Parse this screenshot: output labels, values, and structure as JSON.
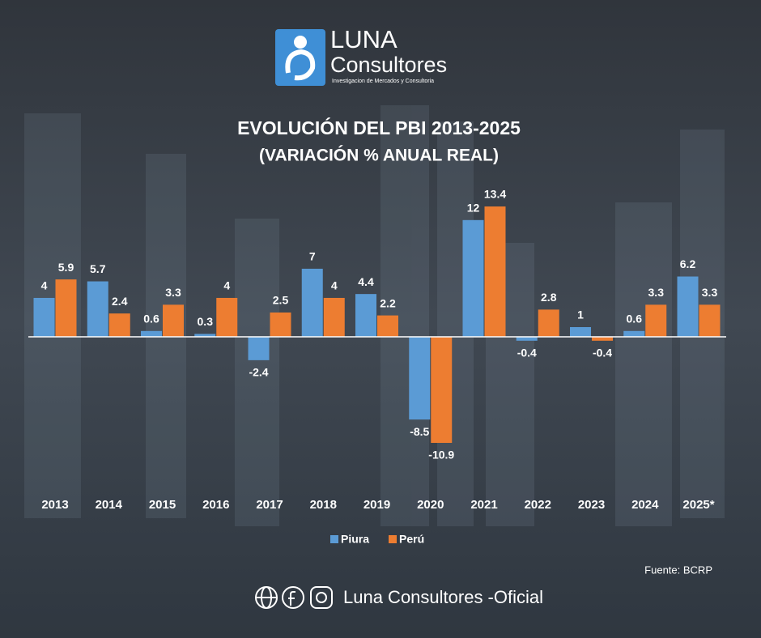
{
  "logo": {
    "name": "LUNA",
    "name2": "Consultores",
    "tagline": "Investigacion de Mercados y Consultoria"
  },
  "chart_data": {
    "type": "bar",
    "title": "EVOLUCIÓN DEL PBI 2013-2025",
    "subtitle": "(VARIACIÓN % ANUAL REAL)",
    "categories": [
      "2013",
      "2014",
      "2015",
      "2016",
      "2017",
      "2018",
      "2019",
      "2020",
      "2021",
      "2022",
      "2023",
      "2024",
      "2025*"
    ],
    "series": [
      {
        "name": "Piura",
        "color": "#5b9bd5",
        "values": [
          4,
          5.7,
          0.6,
          0.3,
          -2.4,
          7,
          4.4,
          -8.5,
          12,
          -0.4,
          1,
          0.6,
          6.2
        ]
      },
      {
        "name": "Perú",
        "color": "#ed7d31",
        "values": [
          5.9,
          2.4,
          3.3,
          4,
          2.5,
          4,
          2.2,
          -10.9,
          13.4,
          2.8,
          -0.4,
          3.3,
          3.3
        ]
      }
    ],
    "source": "Fuente: BCRP"
  },
  "footer": "Luna Consultores -Oficial"
}
